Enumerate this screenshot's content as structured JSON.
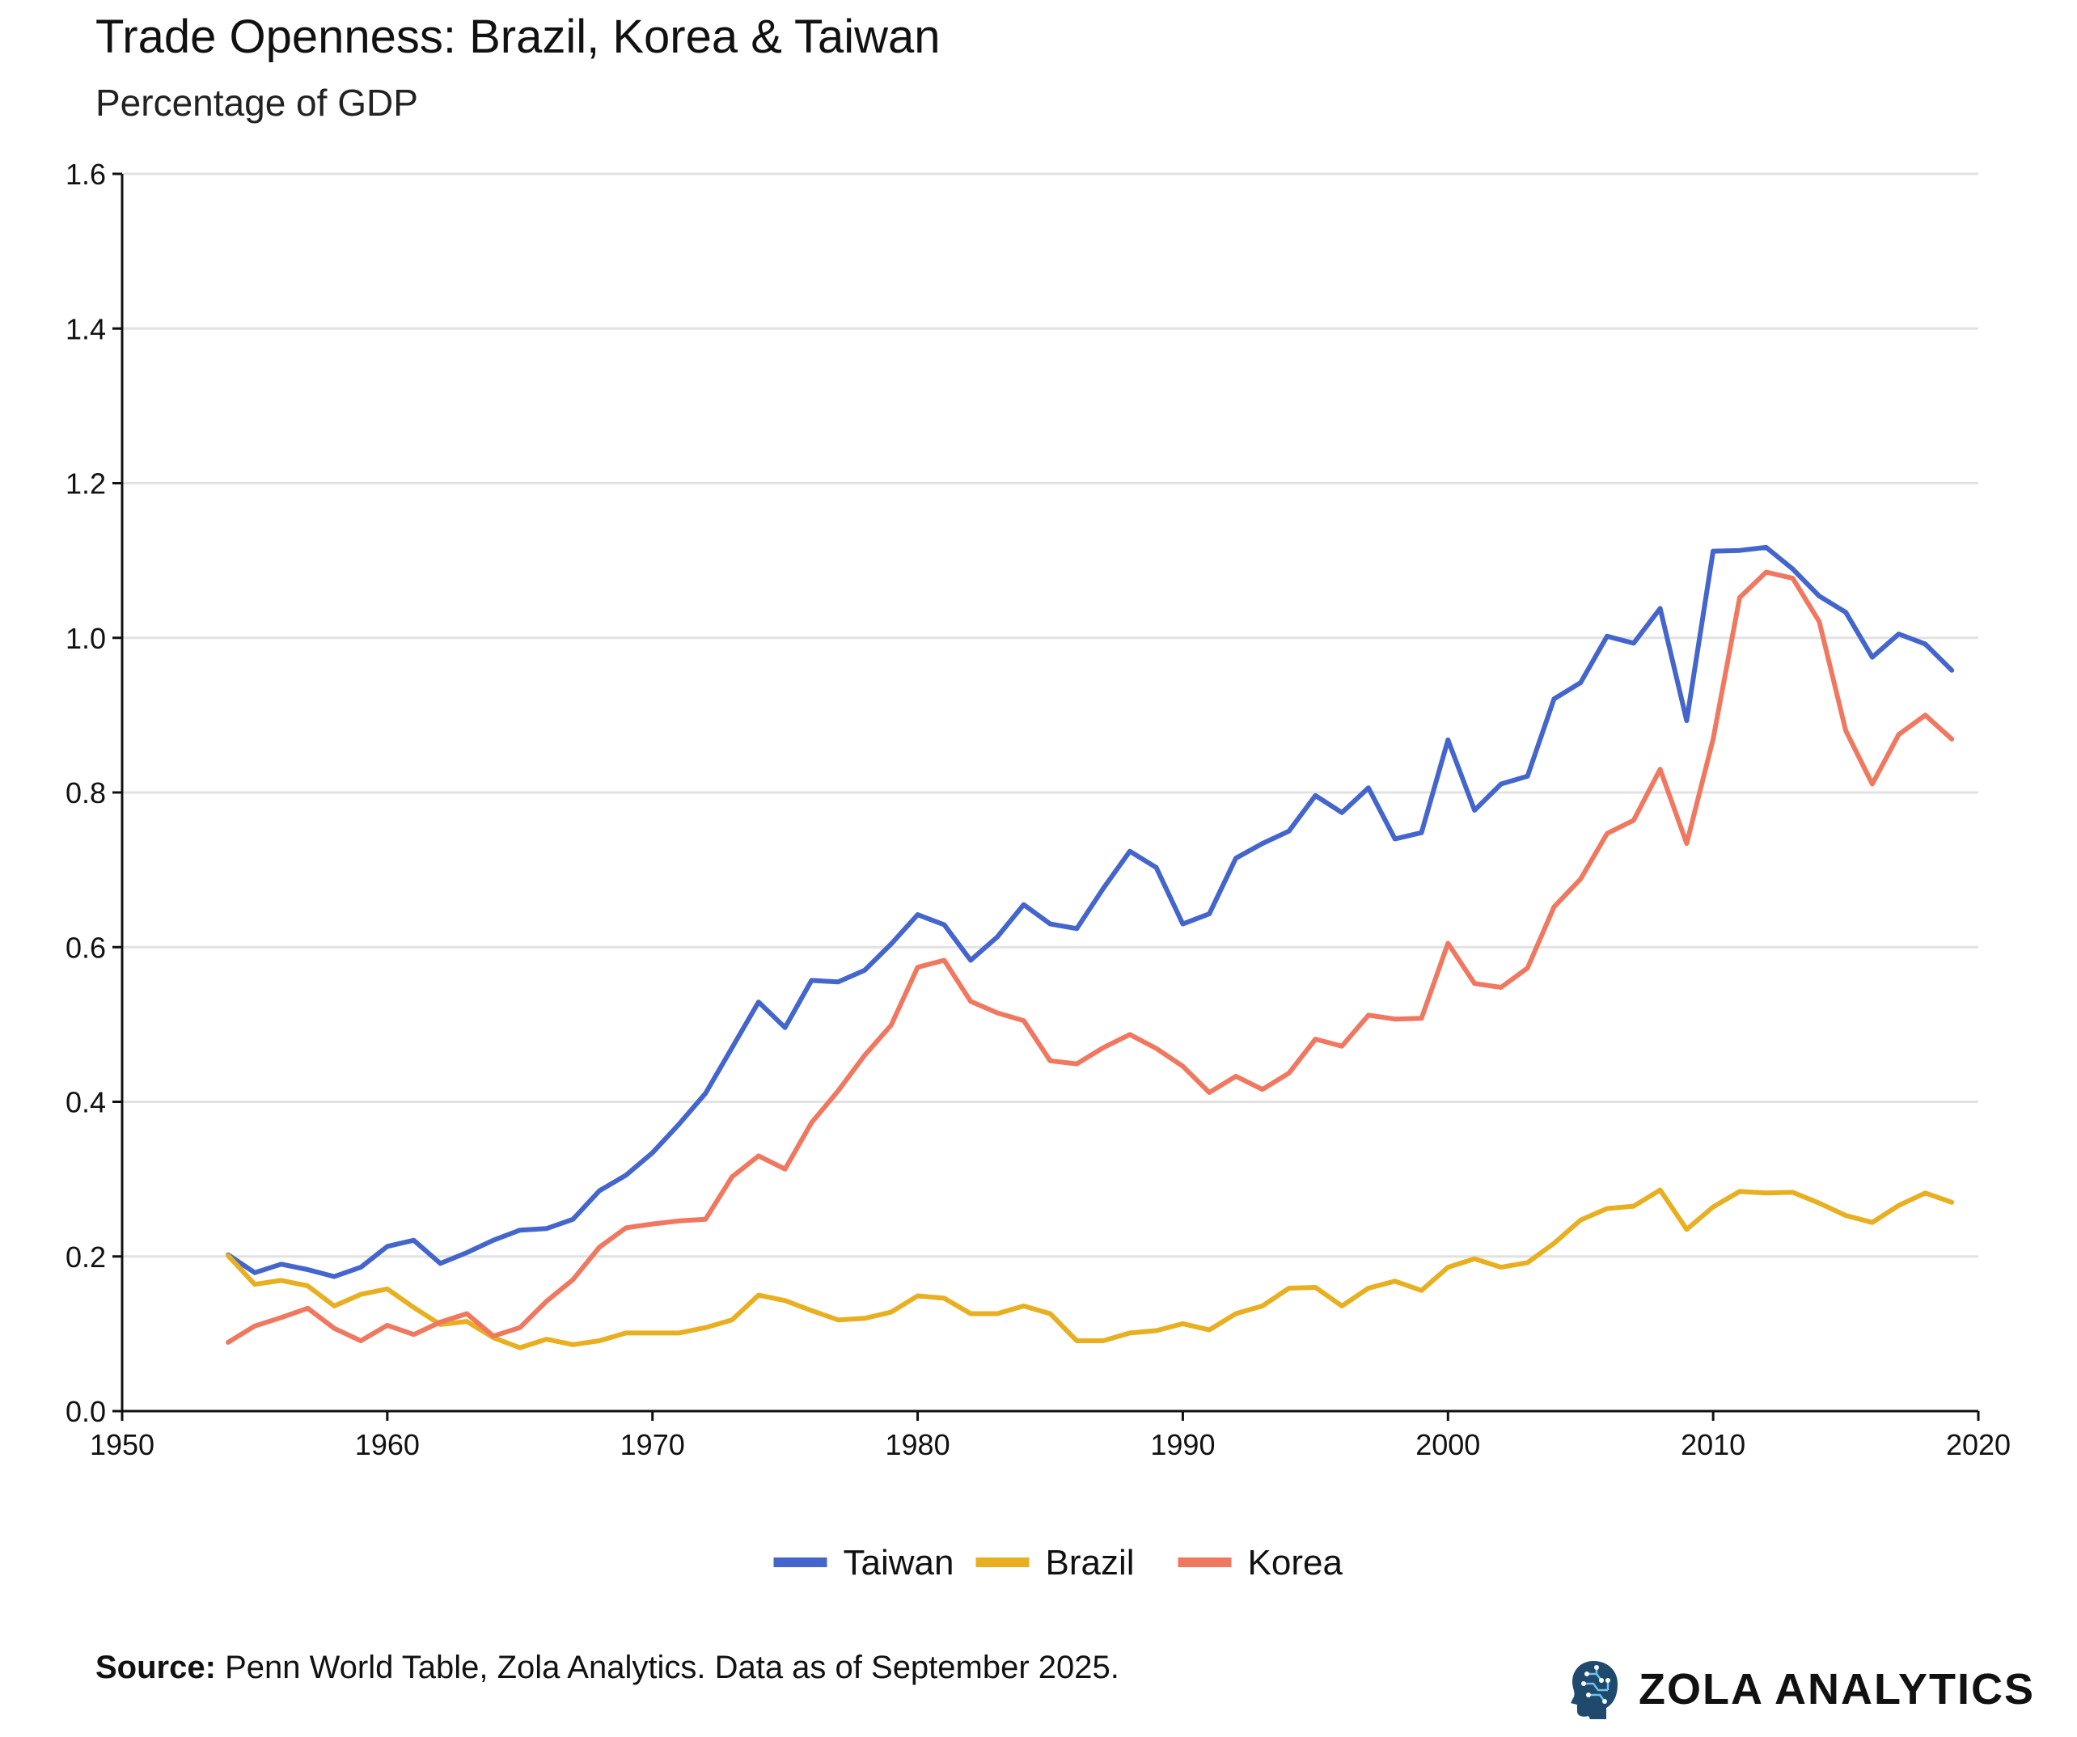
{
  "header": {
    "title": "Trade Openness: Brazil, Korea & Taiwan",
    "subtitle": "Percentage of GDP"
  },
  "footer": {
    "source_label": "Source:",
    "source_text": "Penn World Table, Zola Analytics. Data as of September 2025.",
    "brand": "ZOLA ANALYTICS",
    "brand_icon": "head-circuit-icon"
  },
  "chart_data": {
    "type": "line",
    "title": "Trade Openness: Brazil, Korea & Taiwan",
    "subtitle": "Percentage of GDP",
    "xlabel": "",
    "ylabel": "",
    "xlim": [
      1950,
      2020
    ],
    "ylim": [
      0,
      1.6
    ],
    "x_ticks": [
      1950,
      1960,
      1970,
      1980,
      1990,
      2000,
      2010,
      2020
    ],
    "y_ticks": [
      "0.0",
      "0.2",
      "0.4",
      "0.6",
      "0.8",
      "1.0",
      "1.2",
      "1.4",
      "1.6"
    ],
    "grid": "horizontal",
    "legend_position": "bottom-center",
    "x": [
      1954,
      1955,
      1956,
      1957,
      1958,
      1959,
      1960,
      1961,
      1962,
      1963,
      1964,
      1965,
      1966,
      1967,
      1968,
      1969,
      1970,
      1971,
      1972,
      1973,
      1974,
      1975,
      1976,
      1977,
      1978,
      1979,
      1980,
      1981,
      1982,
      1983,
      1984,
      1985,
      1986,
      1987,
      1988,
      1989,
      1990,
      1991,
      1992,
      1993,
      1994,
      1995,
      1996,
      1997,
      1998,
      1999,
      2000,
      2001,
      2002,
      2003,
      2004,
      2005,
      2006,
      2007,
      2008,
      2009,
      2010,
      2011,
      2012,
      2013,
      2014,
      2015,
      2016,
      2017,
      2018,
      2019
    ],
    "series": [
      {
        "name": "Taiwan",
        "color": "#4466cc",
        "values": [
          0.202,
          0.179,
          0.19,
          0.183,
          0.174,
          0.186,
          0.213,
          0.221,
          0.191,
          0.205,
          0.221,
          0.234,
          0.236,
          0.248,
          0.285,
          0.305,
          0.334,
          0.371,
          0.411,
          0.47,
          0.529,
          0.496,
          0.557,
          0.555,
          0.57,
          0.604,
          0.642,
          0.629,
          0.583,
          0.613,
          0.655,
          0.63,
          0.624,
          0.676,
          0.724,
          0.703,
          0.63,
          0.643,
          0.715,
          0.734,
          0.75,
          0.796,
          0.774,
          0.806,
          0.74,
          0.748,
          0.868,
          0.777,
          0.811,
          0.821,
          0.921,
          0.942,
          1.002,
          0.993,
          1.038,
          0.893,
          1.112,
          1.113,
          1.117,
          1.089,
          1.054,
          1.033,
          0.975,
          1.005,
          0.992,
          0.958
        ]
      },
      {
        "name": "Brazil",
        "color": "#e8b020",
        "values": [
          0.201,
          0.164,
          0.169,
          0.162,
          0.136,
          0.151,
          0.158,
          0.134,
          0.112,
          0.116,
          0.095,
          0.082,
          0.093,
          0.086,
          0.091,
          0.101,
          0.101,
          0.101,
          0.108,
          0.118,
          0.15,
          0.143,
          0.13,
          0.118,
          0.12,
          0.128,
          0.149,
          0.146,
          0.126,
          0.126,
          0.136,
          0.126,
          0.091,
          0.091,
          0.101,
          0.104,
          0.113,
          0.105,
          0.126,
          0.136,
          0.159,
          0.16,
          0.136,
          0.159,
          0.168,
          0.156,
          0.186,
          0.197,
          0.186,
          0.192,
          0.217,
          0.247,
          0.262,
          0.265,
          0.286,
          0.235,
          0.264,
          0.284,
          0.282,
          0.283,
          0.269,
          0.253,
          0.244,
          0.266,
          0.282,
          0.27
        ]
      },
      {
        "name": "Korea",
        "color": "#f07860",
        "values": [
          0.089,
          0.11,
          0.121,
          0.133,
          0.107,
          0.091,
          0.111,
          0.099,
          0.115,
          0.126,
          0.097,
          0.108,
          0.142,
          0.17,
          0.212,
          0.237,
          0.242,
          0.246,
          0.248,
          0.303,
          0.33,
          0.313,
          0.373,
          0.414,
          0.46,
          0.499,
          0.574,
          0.583,
          0.53,
          0.515,
          0.505,
          0.453,
          0.449,
          0.47,
          0.487,
          0.469,
          0.446,
          0.412,
          0.433,
          0.416,
          0.437,
          0.481,
          0.472,
          0.512,
          0.507,
          0.508,
          0.605,
          0.553,
          0.548,
          0.573,
          0.652,
          0.688,
          0.747,
          0.764,
          0.83,
          0.734,
          0.869,
          1.052,
          1.085,
          1.077,
          1.021,
          0.88,
          0.811,
          0.875,
          0.9,
          0.869
        ]
      }
    ]
  }
}
